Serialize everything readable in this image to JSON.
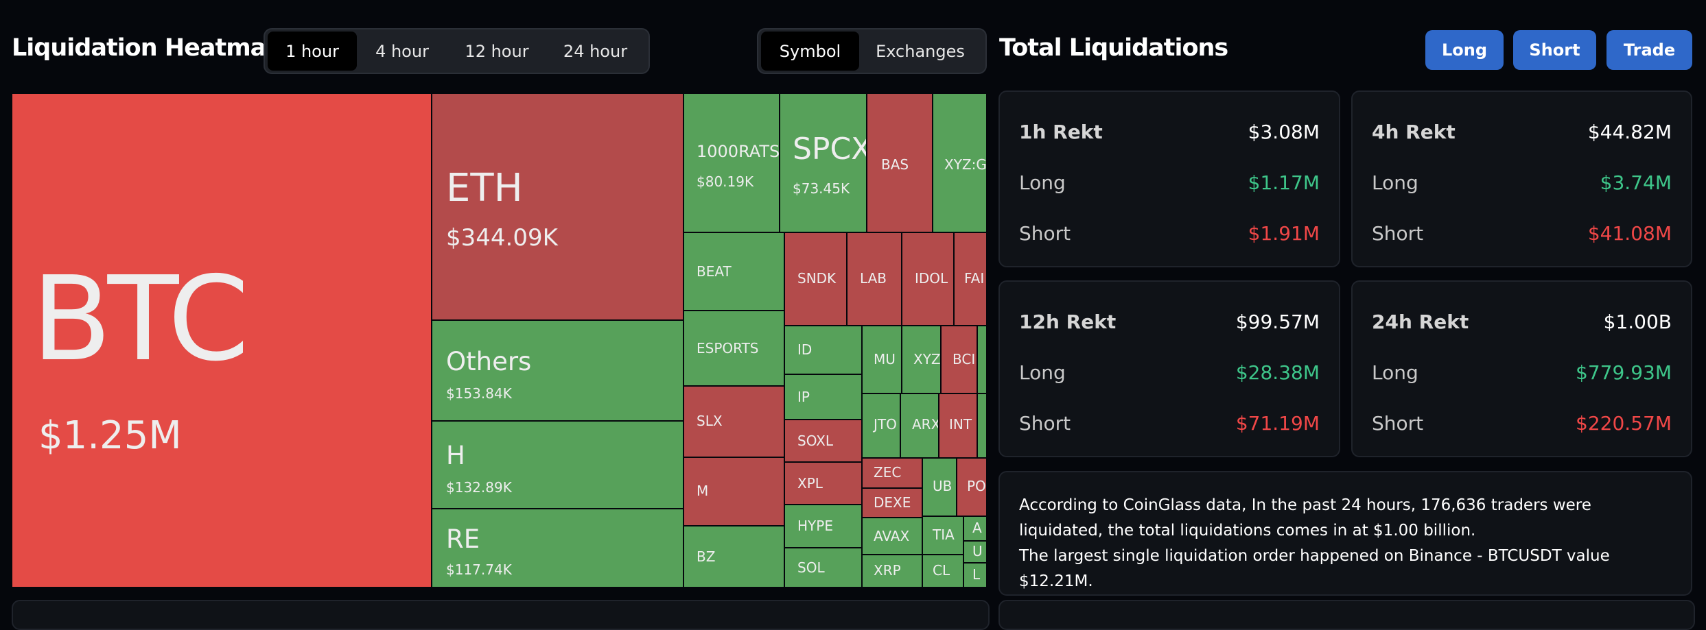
{
  "heatmap": {
    "title": "Liquidation Heatmap",
    "time_options": [
      "1 hour",
      "4 hour",
      "12 hour",
      "24 hour"
    ],
    "time_selected": "1 hour",
    "view_options": [
      "Symbol",
      "Exchanges"
    ],
    "view_selected": "Symbol"
  },
  "colors": {
    "long": "#57a15a",
    "short_big": "#e44b46",
    "short": "#b34b4b"
  },
  "tiles": [
    {
      "symbol": "BTC",
      "value": "$1.25M",
      "side": "short_big"
    },
    {
      "symbol": "ETH",
      "value": "$344.09K",
      "side": "short"
    },
    {
      "symbol": "Others",
      "value": "$153.84K",
      "side": "long"
    },
    {
      "symbol": "H",
      "value": "$132.89K",
      "side": "long"
    },
    {
      "symbol": "RE",
      "value": "$117.74K",
      "side": "long"
    },
    {
      "symbol": "1000RATS",
      "value": "$80.19K",
      "side": "long"
    },
    {
      "symbol": "SPCX",
      "value": "$73.45K",
      "side": "long"
    },
    {
      "symbol": "BAS",
      "value": "",
      "side": "short"
    },
    {
      "symbol": "XYZ:G",
      "value": "",
      "side": "long"
    },
    {
      "symbol": "BEAT",
      "value": "",
      "side": "long"
    },
    {
      "symbol": "SNDK",
      "value": "",
      "side": "short"
    },
    {
      "symbol": "LAB",
      "value": "",
      "side": "short"
    },
    {
      "symbol": "IDOL",
      "value": "",
      "side": "short"
    },
    {
      "symbol": "FAI",
      "value": "",
      "side": "short"
    },
    {
      "symbol": "ESPORTS",
      "value": "",
      "side": "long"
    },
    {
      "symbol": "ID",
      "value": "",
      "side": "long"
    },
    {
      "symbol": "MU",
      "value": "",
      "side": "long"
    },
    {
      "symbol": "XYZ",
      "value": "",
      "side": "long"
    },
    {
      "symbol": "BCI",
      "value": "",
      "side": "short"
    },
    {
      "symbol": "",
      "value": "",
      "side": "long"
    },
    {
      "symbol": "SLX",
      "value": "",
      "side": "short"
    },
    {
      "symbol": "IP",
      "value": "",
      "side": "long"
    },
    {
      "symbol": "JTO",
      "value": "",
      "side": "long"
    },
    {
      "symbol": "ARX",
      "value": "",
      "side": "long"
    },
    {
      "symbol": "INT",
      "value": "",
      "side": "short"
    },
    {
      "symbol": "",
      "value": "",
      "side": "long"
    },
    {
      "symbol": "SOXL",
      "value": "",
      "side": "short"
    },
    {
      "symbol": "M",
      "value": "",
      "side": "short"
    },
    {
      "symbol": "XPL",
      "value": "",
      "side": "short"
    },
    {
      "symbol": "ZEC",
      "value": "",
      "side": "short"
    },
    {
      "symbol": "UB",
      "value": "",
      "side": "long"
    },
    {
      "symbol": "POPCAT",
      "value": "",
      "side": "short"
    },
    {
      "symbol": "DEXE",
      "value": "",
      "side": "short"
    },
    {
      "symbol": "HYPE",
      "value": "",
      "side": "long"
    },
    {
      "symbol": "AVAX",
      "value": "",
      "side": "long"
    },
    {
      "symbol": "TIA",
      "value": "",
      "side": "long"
    },
    {
      "symbol": "A",
      "value": "",
      "side": "long"
    },
    {
      "symbol": "U",
      "value": "",
      "side": "long"
    },
    {
      "symbol": "BZ",
      "value": "",
      "side": "long"
    },
    {
      "symbol": "SOL",
      "value": "",
      "side": "long"
    },
    {
      "symbol": "XRP",
      "value": "",
      "side": "long"
    },
    {
      "symbol": "CL",
      "value": "",
      "side": "long"
    },
    {
      "symbol": "L",
      "value": "",
      "side": "long"
    }
  ],
  "totals": {
    "title": "Total Liquidations",
    "buttons": [
      "Long",
      "Short",
      "Trade"
    ],
    "long_label": "Long",
    "short_label": "Short",
    "cards": [
      {
        "label": "1h Rekt",
        "total": "$3.08M",
        "long": "$1.17M",
        "short": "$1.91M"
      },
      {
        "label": "4h Rekt",
        "total": "$44.82M",
        "long": "$3.74M",
        "short": "$41.08M"
      },
      {
        "label": "12h Rekt",
        "total": "$99.57M",
        "long": "$28.38M",
        "short": "$71.19M"
      },
      {
        "label": "24h Rekt",
        "total": "$1.00B",
        "long": "$779.93M",
        "short": "$220.57M"
      }
    ],
    "summary_line1": "According to CoinGlass data, In the past 24 hours, 176,636 traders were liquidated, the total liquidations comes in at $1.00 billion.",
    "summary_line2": "The largest single liquidation order happened on Binance - BTCUSDT value $12.21M."
  }
}
